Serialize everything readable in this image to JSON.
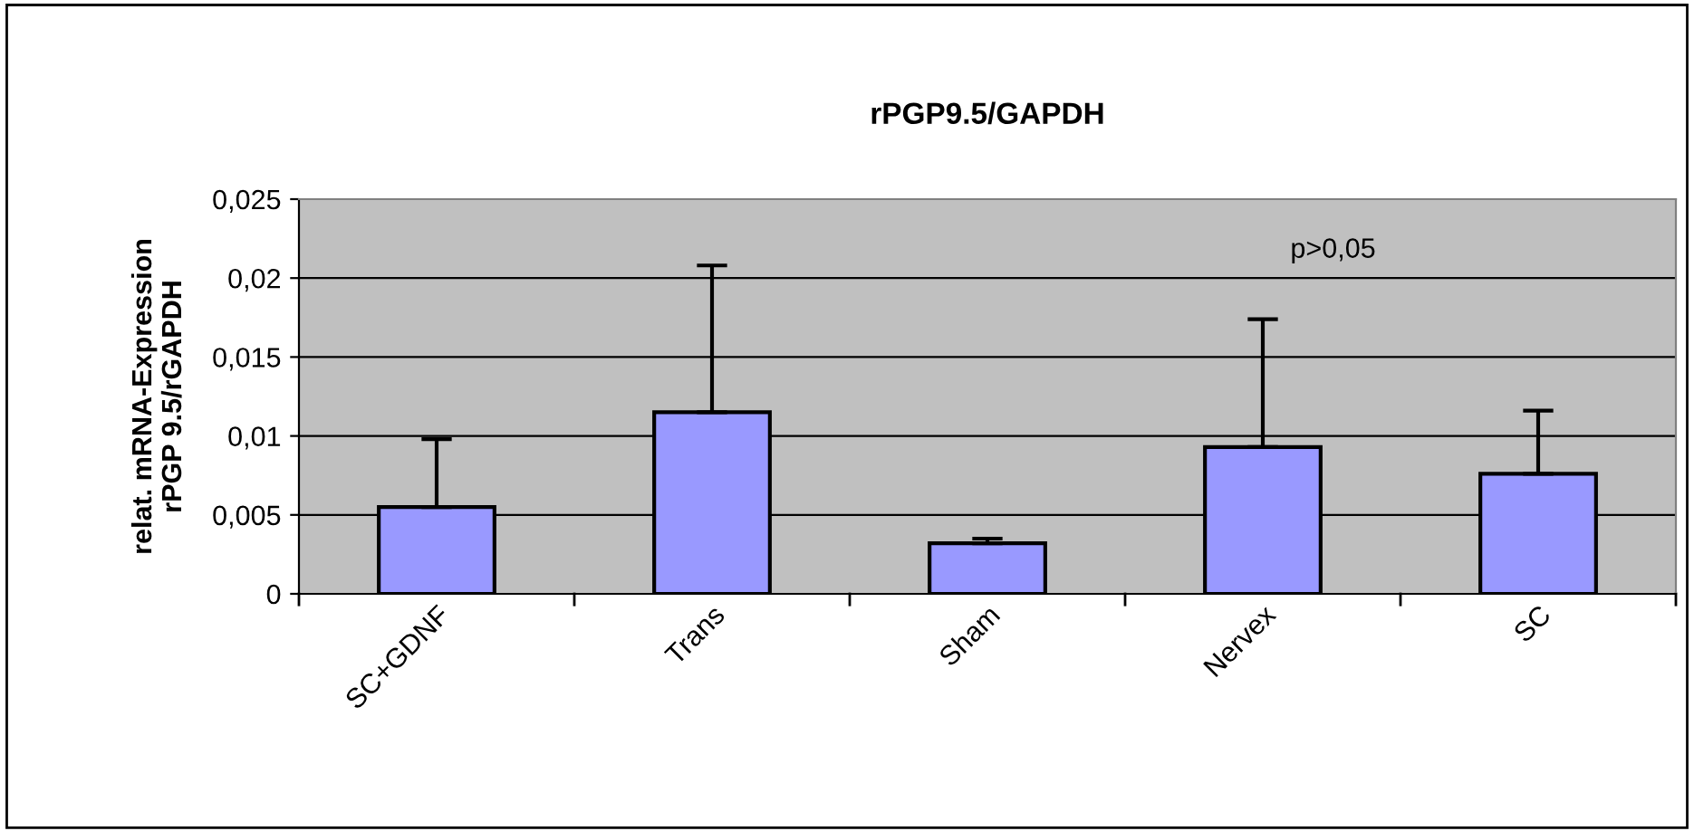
{
  "chart_data": {
    "type": "bar",
    "title": "rPGP9.5/GAPDH",
    "ylabel": "relat. mRNA-Expression\nrPGP 9.5/rGAPDH",
    "categories": [
      "SC+GDNF",
      "Trans",
      "Sham",
      "Nervex",
      "SC"
    ],
    "values": [
      0.0055,
      0.0115,
      0.0032,
      0.0093,
      0.0076
    ],
    "errors": [
      [
        0.0055,
        0.0098
      ],
      [
        0.0115,
        0.0208
      ],
      [
        0.0032,
        0.0035
      ],
      [
        0.0093,
        0.0174
      ],
      [
        0.0076,
        0.0116
      ]
    ],
    "color": "#9999ff",
    "ylim": [
      0,
      0.025
    ],
    "yticks": [
      {
        "value": 0,
        "label": "0"
      },
      {
        "value": 0.005,
        "label": "0,005"
      },
      {
        "value": 0.01,
        "label": "0,01"
      },
      {
        "value": 0.015,
        "label": "0,015"
      },
      {
        "value": 0.02,
        "label": "0,02"
      },
      {
        "value": 0.025,
        "label": "0,025"
      }
    ],
    "grid": "y",
    "annotations": [
      "p>0,05"
    ]
  }
}
